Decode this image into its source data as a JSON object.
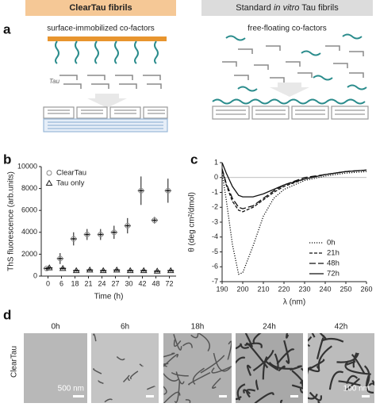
{
  "panel_labels": [
    "a",
    "b",
    "c",
    "d"
  ],
  "panel_a": {
    "left_title": "ClearTau fibrils",
    "right_title": [
      "Standard ",
      "in vitro",
      " Tau fibrils"
    ],
    "left_caption": "surface-immobilized co-factors",
    "right_caption": "free-floating co-factors",
    "tau_label": "Tau"
  },
  "chart_data": [
    {
      "type": "errorbar",
      "ylabel": "ThS fluorescence (arb.units)",
      "xlabel": "Time (h)",
      "categories": [
        "0",
        "6",
        "18",
        "21",
        "24",
        "27",
        "30",
        "42",
        "48",
        "72"
      ],
      "ylim": [
        0,
        10000
      ],
      "yticks": [
        0,
        2000,
        4000,
        6000,
        8000,
        10000
      ],
      "legend": "upper left",
      "series": [
        {
          "name": "ClearTau",
          "marker": "circle",
          "color": "#8a8a8a",
          "values": [
            700,
            1600,
            3400,
            3800,
            3800,
            4000,
            4600,
            7800,
            5100,
            7800
          ],
          "errors": [
            100,
            500,
            600,
            500,
            500,
            600,
            700,
            1300,
            300,
            1100
          ]
        },
        {
          "name": "Tau only",
          "marker": "triangle",
          "color": "#222222",
          "values": [
            750,
            700,
            500,
            550,
            500,
            550,
            500,
            500,
            450,
            500
          ],
          "errors": [
            100,
            100,
            100,
            100,
            100,
            100,
            100,
            100,
            100,
            100
          ]
        }
      ]
    },
    {
      "type": "line",
      "ylabel": "θ (deg cm²/dmol)",
      "xlabel": "λ (nm)",
      "x": [
        190,
        192,
        195,
        198,
        200,
        205,
        210,
        215,
        220,
        230,
        240,
        250,
        260
      ],
      "xlim": [
        190,
        260
      ],
      "xticks": [
        190,
        200,
        210,
        220,
        230,
        240,
        250,
        260
      ],
      "ylim": [
        -7,
        1
      ],
      "yticks": [
        1,
        0,
        -1,
        -2,
        -3,
        -4,
        -5,
        -6,
        -7
      ],
      "zero_line": true,
      "legend": "lower right",
      "series": [
        {
          "name": "0h",
          "color": "#111111",
          "dash": "dotted",
          "values": [
            0.3,
            -1.5,
            -4.5,
            -6.5,
            -6.4,
            -4.6,
            -2.6,
            -1.4,
            -0.8,
            -0.2,
            0.1,
            0.3,
            0.4
          ]
        },
        {
          "name": "21h",
          "color": "#111111",
          "dash": "short",
          "values": [
            0.5,
            -0.5,
            -1.6,
            -2.2,
            -2.3,
            -2.0,
            -1.5,
            -1.0,
            -0.6,
            -0.1,
            0.2,
            0.4,
            0.5
          ]
        },
        {
          "name": "48h",
          "color": "#111111",
          "dash": "long",
          "values": [
            0.6,
            -0.4,
            -1.4,
            -2.0,
            -2.1,
            -1.9,
            -1.4,
            -0.9,
            -0.5,
            0.0,
            0.2,
            0.4,
            0.5
          ]
        },
        {
          "name": "72h",
          "color": "#111111",
          "dash": "solid",
          "values": [
            1.0,
            0.3,
            -0.6,
            -1.2,
            -1.3,
            -1.3,
            -1.1,
            -0.8,
            -0.5,
            -0.1,
            0.2,
            0.4,
            0.5
          ]
        }
      ]
    }
  ],
  "panel_d": {
    "row_label": "ClearTau",
    "columns": [
      "0h",
      "6h",
      "18h",
      "24h",
      "42h"
    ],
    "scale_left": "500 nm",
    "scale_right": "100 nm"
  }
}
